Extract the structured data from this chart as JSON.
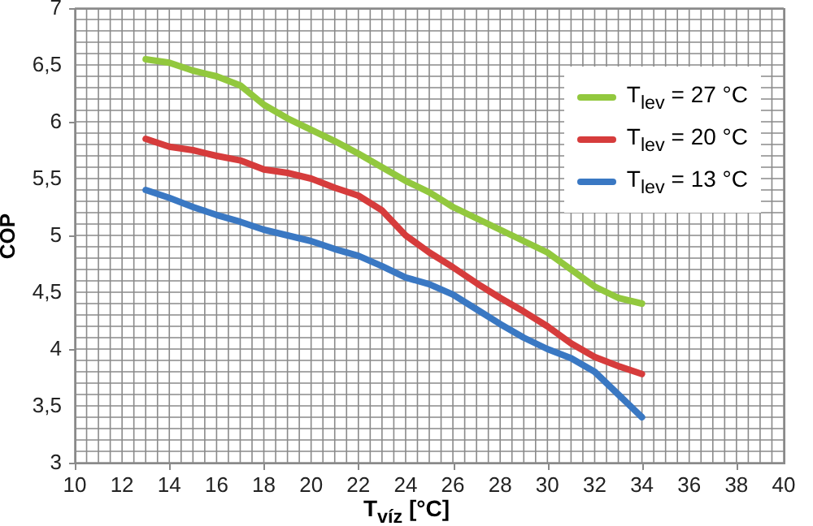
{
  "chart_data": {
    "type": "line",
    "xlabel": "T$_{víz}$ [°C]",
    "ylabel": "COP",
    "xlim": [
      10,
      40
    ],
    "ylim": [
      3,
      7
    ],
    "xticks": [
      10,
      {
        "value": 10.5,
        "label": null
      },
      {
        "value": 11,
        "label": null
      },
      {
        "value": 11.5,
        "label": null
      },
      12,
      {
        "value": 12.5,
        "label": null
      },
      {
        "value": 13,
        "label": null
      },
      {
        "value": 13.5,
        "label": null
      },
      14,
      {
        "value": 14.5,
        "label": null
      },
      {
        "value": 15,
        "label": null
      },
      {
        "value": 15.5,
        "label": null
      },
      16,
      {
        "value": 16.5,
        "label": null
      },
      {
        "value": 17,
        "label": null
      },
      {
        "value": 17.5,
        "label": null
      },
      18,
      {
        "value": 18.5,
        "label": null
      },
      {
        "value": 19,
        "label": null
      },
      {
        "value": 19.5,
        "label": null
      },
      20,
      {
        "value": 20.5,
        "label": null
      },
      {
        "value": 21,
        "label": null
      },
      {
        "value": 21.5,
        "label": null
      },
      22,
      {
        "value": 22.5,
        "label": null
      },
      {
        "value": 23,
        "label": null
      },
      {
        "value": 23.5,
        "label": null
      },
      24,
      {
        "value": 24.5,
        "label": null
      },
      {
        "value": 25,
        "label": null
      },
      {
        "value": 25.5,
        "label": null
      },
      26,
      {
        "value": 26.5,
        "label": null
      },
      {
        "value": 27,
        "label": null
      },
      {
        "value": 27.5,
        "label": null
      },
      28,
      {
        "value": 28.5,
        "label": null
      },
      {
        "value": 29,
        "label": null
      },
      {
        "value": 29.5,
        "label": null
      },
      30,
      {
        "value": 30.5,
        "label": null
      },
      {
        "value": 31,
        "label": null
      },
      {
        "value": 31.5,
        "label": null
      },
      32,
      {
        "value": 32.5,
        "label": null
      },
      {
        "value": 33,
        "label": null
      },
      {
        "value": 33.5,
        "label": null
      },
      34,
      {
        "value": 34.5,
        "label": null
      },
      {
        "value": 35,
        "label": null
      },
      {
        "value": 35.5,
        "label": null
      },
      36,
      {
        "value": 36.5,
        "label": null
      },
      {
        "value": 37,
        "label": null
      },
      {
        "value": 37.5,
        "label": null
      },
      38,
      {
        "value": 38.5,
        "label": null
      },
      {
        "value": 39,
        "label": null
      },
      {
        "value": 39.5,
        "label": null
      },
      40
    ],
    "yticks": [
      3,
      {
        "value": 3.1,
        "label": null
      },
      {
        "value": 3.2,
        "label": null
      },
      {
        "value": 3.3,
        "label": null
      },
      {
        "value": 3.4,
        "label": null
      },
      {
        "value": 3.5,
        "label": "3,5"
      },
      {
        "value": 3.6,
        "label": null
      },
      {
        "value": 3.7,
        "label": null
      },
      {
        "value": 3.8,
        "label": null
      },
      {
        "value": 3.9,
        "label": null
      },
      4,
      {
        "value": 4.1,
        "label": null
      },
      {
        "value": 4.2,
        "label": null
      },
      {
        "value": 4.3,
        "label": null
      },
      {
        "value": 4.4,
        "label": null
      },
      {
        "value": 4.5,
        "label": "4,5"
      },
      {
        "value": 4.6,
        "label": null
      },
      {
        "value": 4.7,
        "label": null
      },
      {
        "value": 4.8,
        "label": null
      },
      {
        "value": 4.9,
        "label": null
      },
      5,
      {
        "value": 5.1,
        "label": null
      },
      {
        "value": 5.2,
        "label": null
      },
      {
        "value": 5.3,
        "label": null
      },
      {
        "value": 5.4,
        "label": null
      },
      {
        "value": 5.5,
        "label": "5,5"
      },
      {
        "value": 5.6,
        "label": null
      },
      {
        "value": 5.7,
        "label": null
      },
      {
        "value": 5.8,
        "label": null
      },
      {
        "value": 5.9,
        "label": null
      },
      6,
      {
        "value": 6.1,
        "label": null
      },
      {
        "value": 6.2,
        "label": null
      },
      {
        "value": 6.3,
        "label": null
      },
      {
        "value": 6.4,
        "label": null
      },
      {
        "value": 6.5,
        "label": "6,5"
      },
      {
        "value": 6.6,
        "label": null
      },
      {
        "value": 6.7,
        "label": null
      },
      {
        "value": 6.8,
        "label": null
      },
      {
        "value": 6.9,
        "label": null
      },
      7
    ],
    "grid": true,
    "legend": "top right",
    "marker": "none",
    "line_style": "solid",
    "x": [
      13,
      14,
      15,
      16,
      17,
      18,
      19,
      20,
      21,
      22,
      23,
      24,
      25,
      26,
      27,
      28,
      29,
      30,
      31,
      32,
      33,
      34
    ],
    "series": [
      {
        "name": "T$_{lev}$ = 27 °C",
        "color": "#92c83e",
        "values": [
          6.55,
          6.52,
          6.45,
          6.4,
          6.32,
          6.15,
          6.03,
          5.93,
          5.83,
          5.72,
          5.6,
          5.48,
          5.38,
          5.25,
          5.15,
          5.05,
          4.95,
          4.85,
          4.7,
          4.55,
          4.45,
          4.4
        ]
      },
      {
        "name": "T$_{lev}$ = 20 °C",
        "color": "#d63c3c",
        "values": [
          5.85,
          5.78,
          5.75,
          5.7,
          5.66,
          5.58,
          5.55,
          5.5,
          5.42,
          5.35,
          5.22,
          5.0,
          4.85,
          4.72,
          4.58,
          4.45,
          4.33,
          4.2,
          4.05,
          3.93,
          3.85,
          3.78
        ]
      },
      {
        "name": "T$_{lev}$ = 13 °C",
        "color": "#3a78c3",
        "values": [
          5.4,
          5.33,
          5.25,
          5.18,
          5.12,
          5.05,
          5.0,
          4.95,
          4.88,
          4.82,
          4.73,
          4.63,
          4.57,
          4.48,
          4.35,
          4.22,
          4.1,
          4.0,
          3.92,
          3.8,
          3.6,
          3.4
        ]
      }
    ]
  }
}
